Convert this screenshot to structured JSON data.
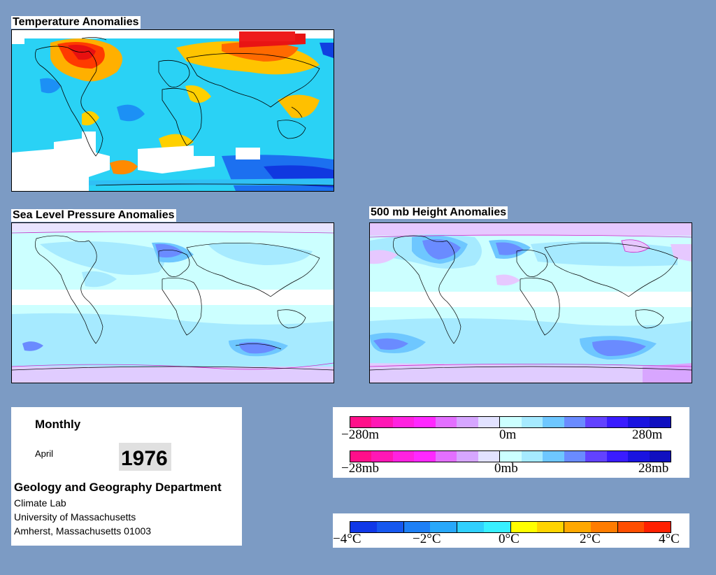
{
  "maps": {
    "temperature": {
      "title": "Temperature Anomalies"
    },
    "slp": {
      "title": "Sea Level Pressure Anomalies"
    },
    "height500": {
      "title": "500 mb Height Anomalies"
    }
  },
  "info": {
    "period": "Monthly",
    "month": "April",
    "year": "1976",
    "department": "Geology and Geography Department",
    "lab": "Climate Lab",
    "university": "University of Massachusetts",
    "address": "Amherst, Massachusetts 01003"
  },
  "legend_height": {
    "min": "−280m",
    "mid": "0m",
    "max": "280m",
    "colors": [
      "#ff0f8a",
      "#ff17b5",
      "#ff22e0",
      "#ff28ff",
      "#e36fff",
      "#d6a6ff",
      "#e2e2ff",
      "#ccffff",
      "#a6eaff",
      "#6ec7ff",
      "#6a8bff",
      "#6242ff",
      "#3a1cff",
      "#1a14e0",
      "#1010c0"
    ]
  },
  "legend_slp": {
    "min": "−28mb",
    "mid": "0mb",
    "max": "28mb",
    "colors": [
      "#ff0f8a",
      "#ff17b5",
      "#ff22e0",
      "#ff28ff",
      "#e36fff",
      "#d6a6ff",
      "#e2e2ff",
      "#ccffff",
      "#a6eaff",
      "#6ec7ff",
      "#6a8bff",
      "#6242ff",
      "#3a1cff",
      "#1a14e0",
      "#1010c0"
    ]
  },
  "legend_temp": {
    "ticks": [
      "−4°C",
      "−2°C",
      "0°C",
      "2°C",
      "4°C"
    ],
    "colors": [
      "#1038e8",
      "#1658f0",
      "#1e80f6",
      "#28a8fa",
      "#30d0fd",
      "#38f0ff",
      "#ffff00",
      "#ffd400",
      "#ffa800",
      "#ff7c00",
      "#ff4e00",
      "#ff2000"
    ]
  }
}
